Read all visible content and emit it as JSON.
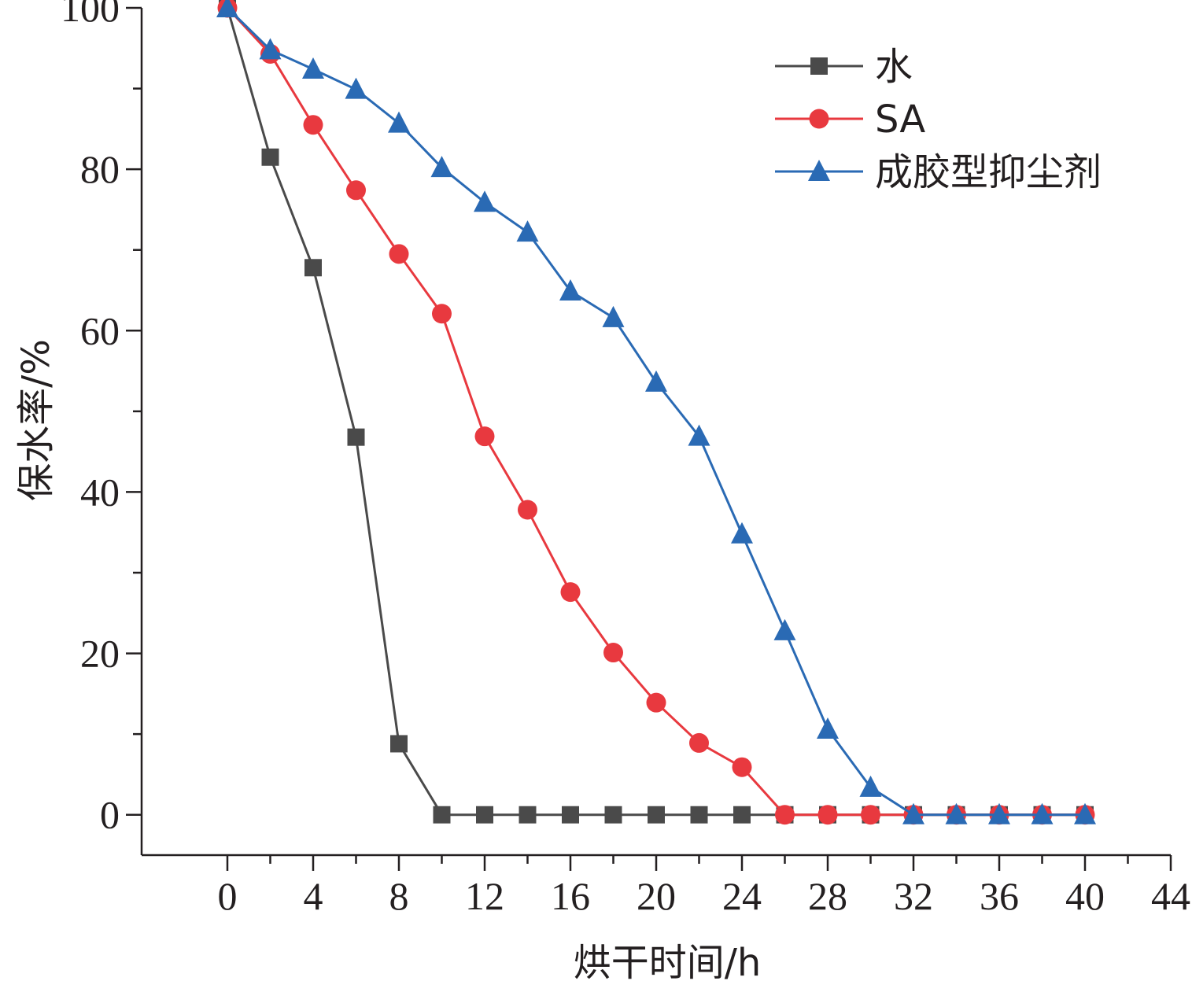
{
  "chart_data": {
    "type": "line",
    "xlabel": "烘干时间/h",
    "ylabel": "保水率/%",
    "xlim": [
      -4,
      44
    ],
    "ylim": [
      -5,
      100
    ],
    "x_ticks": [
      "0",
      "4",
      "8",
      "12",
      "16",
      "20",
      "24",
      "28",
      "32",
      "36",
      "40",
      "44"
    ],
    "y_ticks": [
      "0",
      "20",
      "40",
      "60",
      "80",
      "100"
    ],
    "legend_position": "top-right",
    "x": [
      0,
      2,
      4,
      6,
      8,
      10,
      12,
      14,
      16,
      18,
      20,
      22,
      24,
      26,
      28,
      30,
      32,
      34,
      36,
      38,
      40
    ],
    "series": [
      {
        "name": "水",
        "color": "#4a4a4a",
        "marker": "square",
        "values": [
          100,
          81.5,
          67.8,
          46.8,
          8.8,
          0,
          0,
          0,
          0,
          0,
          0,
          0,
          0,
          0,
          0,
          0,
          0,
          0,
          0,
          0,
          0
        ]
      },
      {
        "name": "SA",
        "color": "#e8393f",
        "marker": "circle",
        "values": [
          100,
          94.3,
          85.5,
          77.4,
          69.5,
          62.1,
          46.9,
          37.8,
          27.6,
          20.1,
          13.9,
          8.9,
          5.9,
          0,
          0,
          0,
          0,
          0,
          0,
          0,
          0
        ]
      },
      {
        "name": "成胶型抑尘剂",
        "color": "#2a6ab4",
        "marker": "triangle",
        "values": [
          100,
          94.8,
          92.4,
          89.9,
          85.7,
          80.2,
          75.9,
          72.2,
          64.9,
          61.6,
          53.6,
          46.9,
          34.8,
          22.8,
          10.6,
          3.4,
          0,
          0,
          0,
          0,
          0
        ]
      }
    ]
  }
}
